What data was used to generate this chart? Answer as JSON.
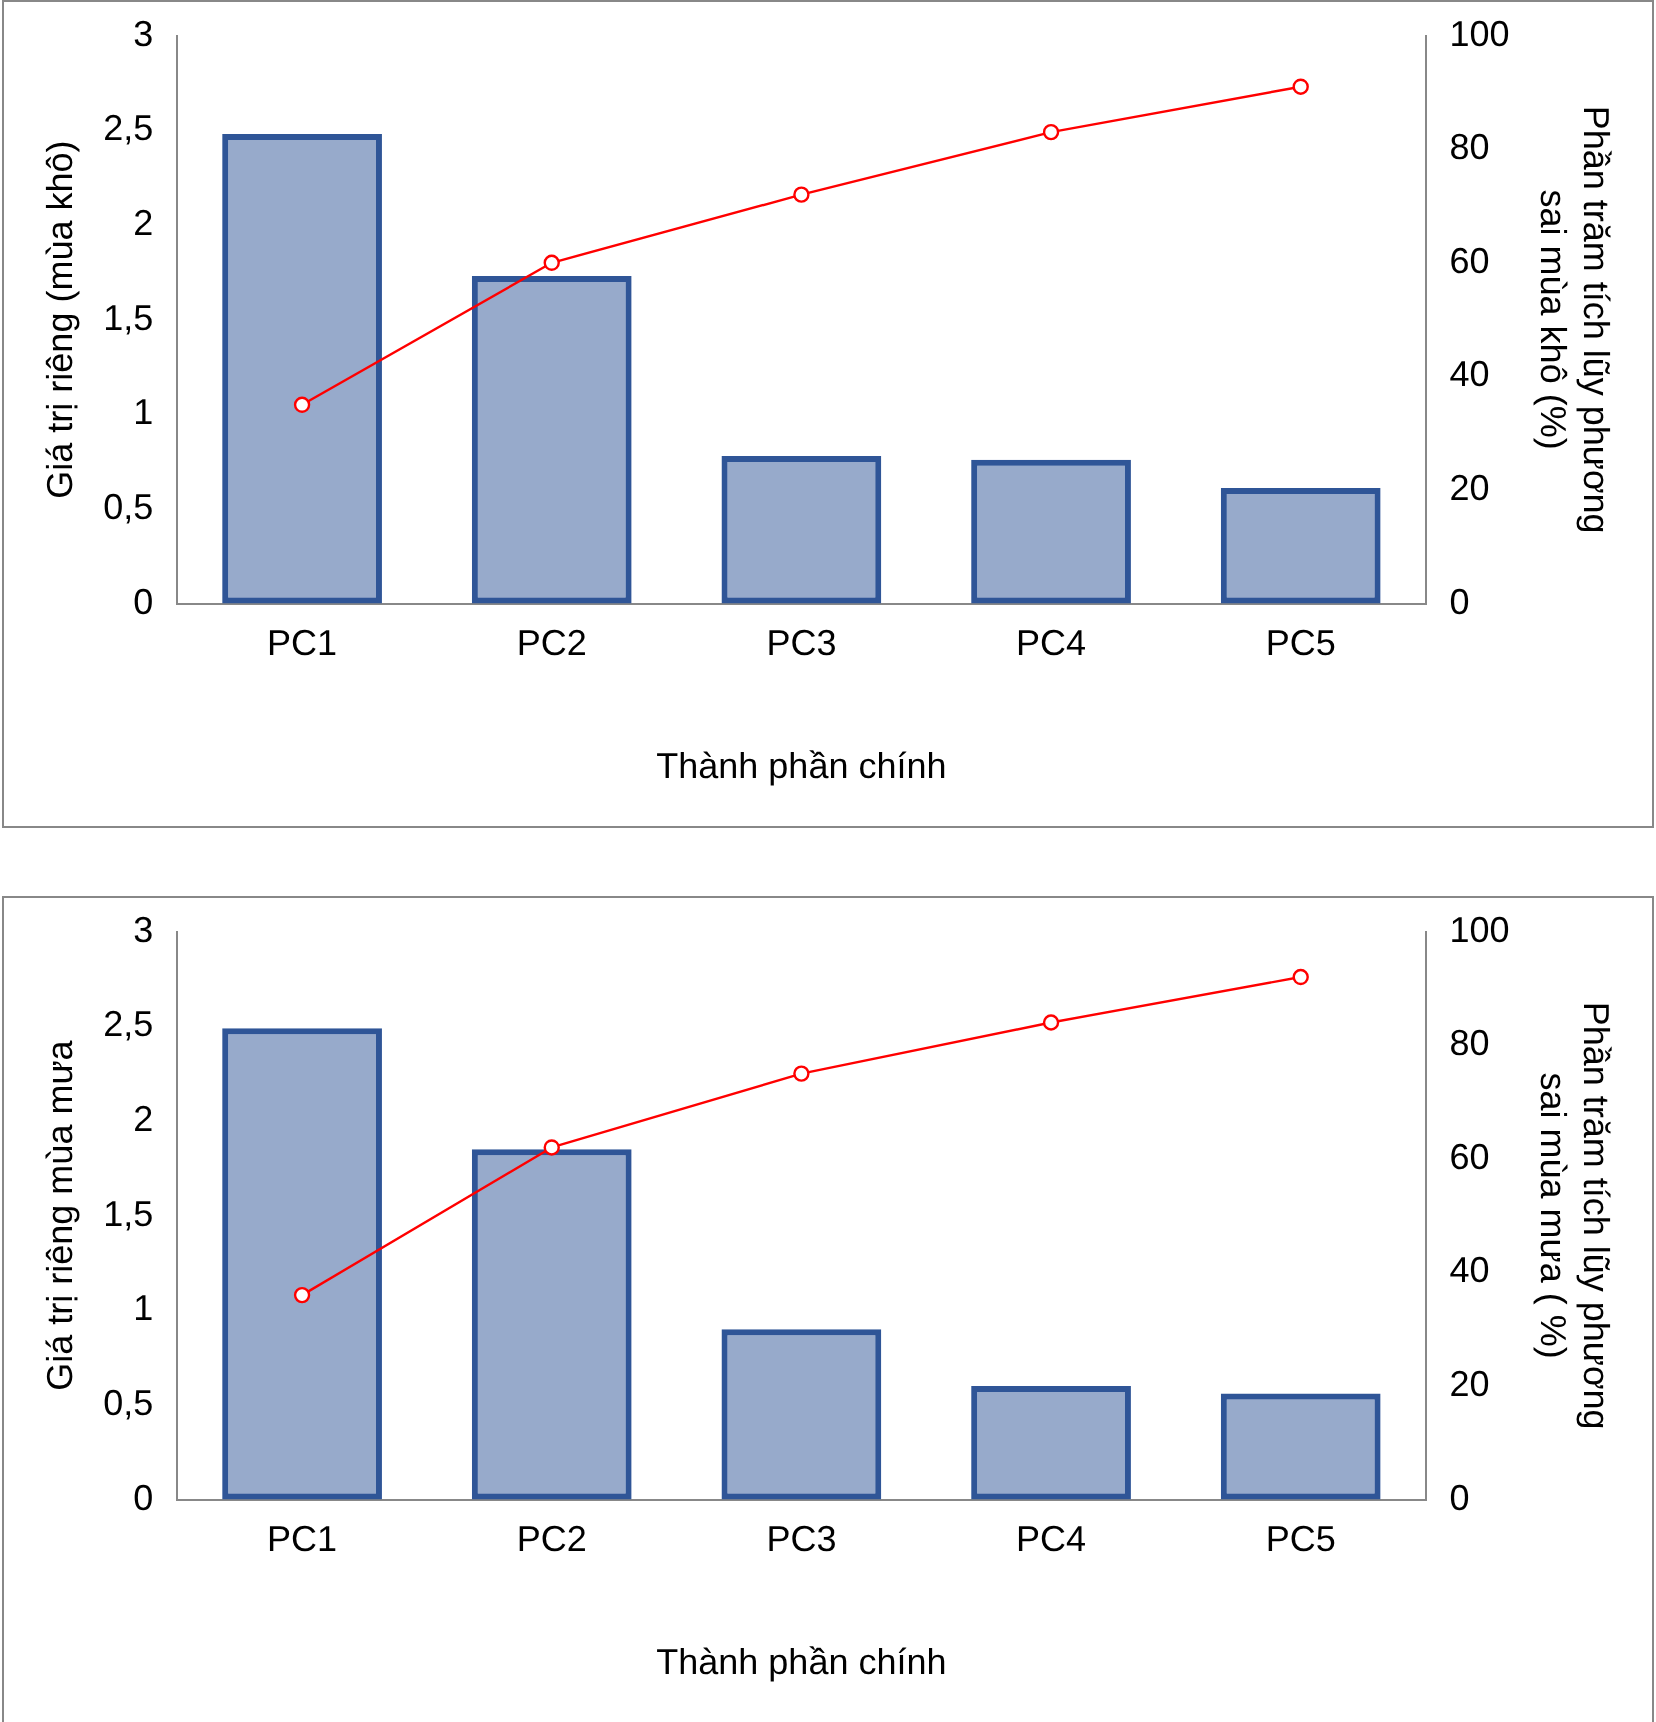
{
  "chart_data": [
    {
      "type": "bar",
      "categories": [
        "PC1",
        "PC2",
        "PC3",
        "PC4",
        "PC5"
      ],
      "xlabel": "Thành phần chính",
      "ylabel": "Giá trị riêng (mùa khô)",
      "y2label": "Phần trăm tích lũy phương\nsai mùa khô (%)",
      "series": [
        {
          "color": "#2f5597",
          "values": [
            2.48,
            1.73,
            0.78,
            0.76,
            0.61
          ]
        },
        {
          "type": "line",
          "axis": "y2",
          "color": "#ff0000",
          "values": [
            35,
            60,
            72,
            83,
            91
          ]
        }
      ],
      "ylim": [
        0,
        3
      ],
      "yticks": [
        0,
        {
          "value": 0.5,
          "label": "0,5"
        },
        1,
        {
          "value": 1.5,
          "label": "1,5"
        },
        2,
        {
          "value": 2.5,
          "label": "2,5"
        },
        3
      ],
      "y2lim": [
        0,
        100
      ],
      "y2ticks": [
        0,
        20,
        40,
        60,
        80,
        100
      ],
      "grid": false,
      "legend": false,
      "marker": "circle"
    },
    {
      "type": "bar",
      "categories": [
        "PC1",
        "PC2",
        "PC3",
        "PC4",
        "PC5"
      ],
      "xlabel": "Thành phần chính",
      "ylabel": "Giá trị riêng mùa mưa",
      "y2label": "Phần trăm tích lũy phương\nsai mùa mưa ( %)",
      "series": [
        {
          "color": "#2f5597",
          "values": [
            2.49,
            1.85,
            0.9,
            0.6,
            0.56
          ]
        },
        {
          "type": "line",
          "axis": "y2",
          "color": "#ff0000",
          "values": [
            36,
            62,
            75,
            84,
            92
          ]
        }
      ],
      "ylim": [
        0,
        3
      ],
      "yticks": [
        0,
        {
          "value": 0.5,
          "label": "0,5"
        },
        1,
        {
          "value": 1.5,
          "label": "1,5"
        },
        2,
        {
          "value": 2.5,
          "label": "2,5"
        },
        3
      ],
      "y2lim": [
        0,
        100
      ],
      "y2ticks": [
        0,
        20,
        40,
        60,
        80,
        100
      ],
      "grid": false,
      "legend": false,
      "marker": "circle"
    }
  ]
}
